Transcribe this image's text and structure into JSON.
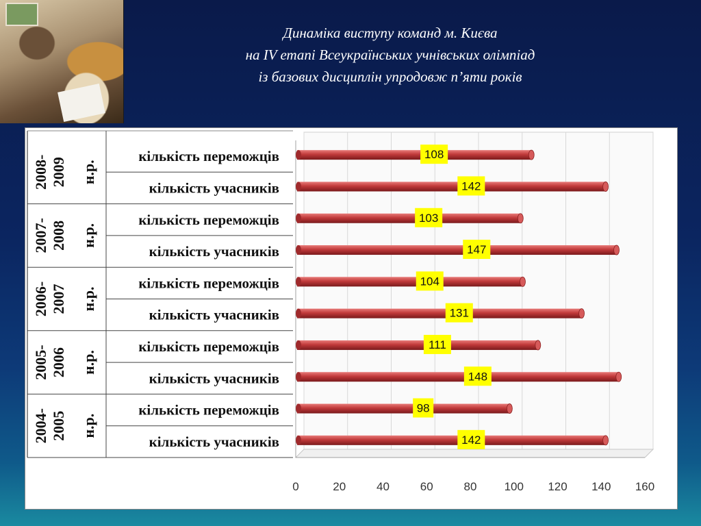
{
  "title": {
    "line1": "Динаміка  виступу  команд  м. Києва",
    "line2": "на  IV етапі  Всеукраїнських  учнівських  олімпіад",
    "line3": "із базових дисциплін упродовж п’яти років"
  },
  "chart_data": {
    "type": "bar",
    "orientation": "horizontal",
    "groups": [
      {
        "year": "2008-2009",
        "suffix": "н.р.",
        "rows": [
          {
            "label": "кількість переможців",
            "value": 108
          },
          {
            "label": "кількість учасників",
            "value": 142
          }
        ]
      },
      {
        "year": "2007-2008",
        "suffix": "н.р.",
        "rows": [
          {
            "label": "кількість переможців",
            "value": 103
          },
          {
            "label": "кількість учасників",
            "value": 147
          }
        ]
      },
      {
        "year": "2006-2007",
        "suffix": "н.р.",
        "rows": [
          {
            "label": "кількість переможців",
            "value": 104
          },
          {
            "label": "кількість учасників",
            "value": 131
          }
        ]
      },
      {
        "year": "2005-2006",
        "suffix": "н.р.",
        "rows": [
          {
            "label": "кількість переможців",
            "value": 111
          },
          {
            "label": "кількість учасників",
            "value": 148
          }
        ]
      },
      {
        "year": "2004-2005",
        "suffix": "н.р.",
        "rows": [
          {
            "label": "кількість переможців",
            "value": 98
          },
          {
            "label": "кількість учасників",
            "value": 142
          }
        ]
      }
    ],
    "xlim": [
      0,
      160
    ],
    "xticks": [
      0,
      20,
      40,
      60,
      80,
      100,
      120,
      140,
      160
    ],
    "grid": true,
    "bar_color": "#c0393a",
    "label_bg": "#ffff00"
  }
}
